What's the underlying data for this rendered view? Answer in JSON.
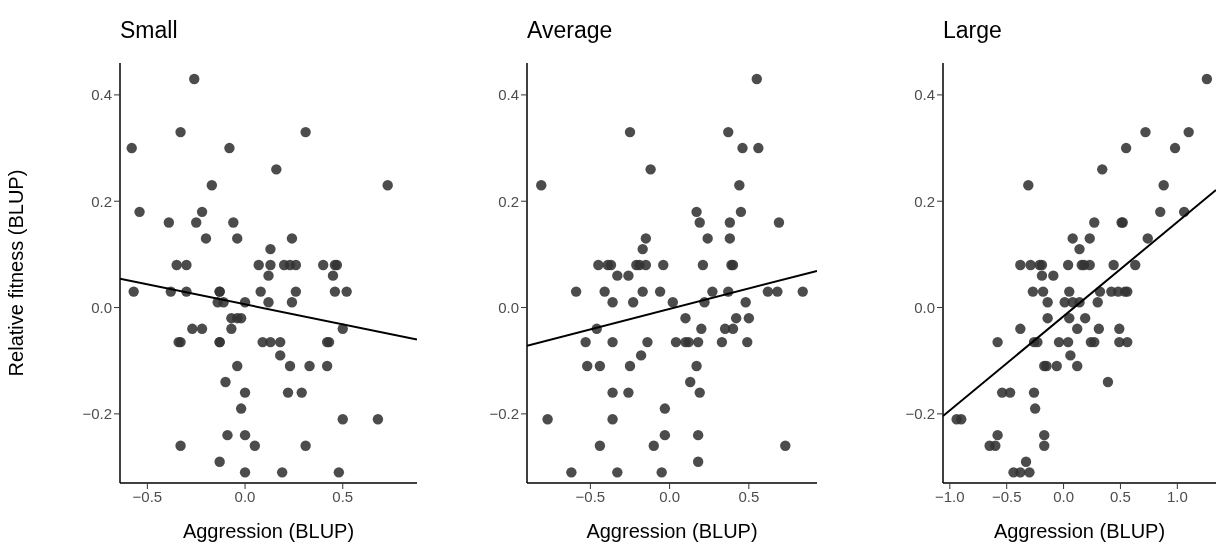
{
  "chart_data": [
    {
      "type": "scatter",
      "title": "Small",
      "xlabel": "Aggression (BLUP)",
      "ylabel": "Relative fitness (BLUP)",
      "xlim": [
        -0.64,
        0.88
      ],
      "xticks": [
        {
          "value": -0.5,
          "label": "−0.5"
        },
        {
          "value": 0,
          "label": "0.0"
        },
        {
          "value": 0.5,
          "label": "0.5"
        }
      ],
      "ylim": [
        -0.33,
        0.46
      ],
      "yticks": [
        {
          "value": -0.2,
          "label": "−0.2"
        },
        {
          "value": 0,
          "label": "0.0"
        },
        {
          "value": 0.2,
          "label": "0.2"
        },
        {
          "value": 0.4,
          "label": "0.4"
        }
      ],
      "series": [
        {
          "type": "scatter",
          "marker": "circle",
          "color": "#333333",
          "x": [
            -0.26,
            -0.33,
            0.31,
            -0.58,
            -0.08,
            0.16,
            -0.17,
            0.73,
            -0.54,
            -0.22,
            -0.39,
            -0.25,
            -0.06,
            -0.2,
            -0.04,
            0.24,
            0.13,
            -0.35,
            -0.3,
            0.07,
            0.13,
            0.2,
            0.23,
            0.26,
            0.4,
            0.46,
            0.47,
            0.12,
            0.45,
            -0.57,
            -0.38,
            -0.3,
            -0.13,
            -0.13,
            0.08,
            0.26,
            0.46,
            0.52,
            -0.14,
            -0.11,
            0,
            0.12,
            0.24,
            -0.07,
            -0.04,
            -0.02,
            -0.27,
            -0.22,
            -0.07,
            0.5,
            -0.34,
            -0.33,
            -0.13,
            -0.13,
            0.09,
            0.13,
            0.18,
            0.42,
            0.43,
            0.18,
            -0.04,
            0.23,
            0.33,
            0.42,
            -0.1,
            0,
            0.22,
            0.29,
            -0.02,
            0.5,
            0.68,
            -0.09,
            0,
            -0.33,
            0.05,
            0.31,
            -0.13,
            0,
            0.19,
            0.48
          ],
          "values": [
            0.43,
            0.33,
            0.33,
            0.3,
            0.3,
            0.26,
            0.23,
            0.23,
            0.18,
            0.18,
            0.16,
            0.16,
            0.16,
            0.13,
            0.13,
            0.13,
            0.11,
            0.08,
            0.08,
            0.08,
            0.08,
            0.08,
            0.08,
            0.08,
            0.08,
            0.08,
            0.08,
            0.06,
            0.06,
            0.03,
            0.03,
            0.03,
            0.03,
            0.03,
            0.03,
            0.03,
            0.03,
            0.03,
            0.01,
            0.01,
            0.01,
            0.01,
            0.01,
            -0.02,
            -0.02,
            -0.02,
            -0.04,
            -0.04,
            -0.04,
            -0.04,
            -0.065,
            -0.065,
            -0.065,
            -0.065,
            -0.065,
            -0.065,
            -0.065,
            -0.065,
            -0.065,
            -0.09,
            -0.11,
            -0.11,
            -0.11,
            -0.11,
            -0.14,
            -0.16,
            -0.16,
            -0.16,
            -0.19,
            -0.21,
            -0.21,
            -0.24,
            -0.24,
            -0.26,
            -0.26,
            -0.26,
            -0.29,
            -0.31,
            -0.31,
            -0.31
          ]
        },
        {
          "type": "line",
          "marker": "none",
          "color": "#000000",
          "x": [
            -0.64,
            0.88
          ],
          "values": [
            0.054,
            -0.06
          ]
        }
      ]
    },
    {
      "type": "scatter",
      "title": "Average",
      "xlabel": "Aggression (BLUP)",
      "xlim": [
        -0.9,
        0.93
      ],
      "xticks": [
        {
          "value": -0.5,
          "label": "−0.5"
        },
        {
          "value": 0,
          "label": "0.0"
        },
        {
          "value": 0.5,
          "label": "0.5"
        }
      ],
      "ylim": [
        -0.33,
        0.46
      ],
      "yticks": [
        {
          "value": -0.2,
          "label": "−0.2"
        },
        {
          "value": 0,
          "label": "0.0"
        },
        {
          "value": 0.2,
          "label": "0.2"
        },
        {
          "value": 0.4,
          "label": "0.4"
        }
      ],
      "series": [
        {
          "type": "scatter",
          "marker": "circle",
          "color": "#333333",
          "x": [
            0.55,
            -0.25,
            0.37,
            0.46,
            0.56,
            -0.12,
            -0.81,
            0.44,
            0.17,
            0.45,
            0.19,
            0.38,
            0.69,
            -0.15,
            0.24,
            0.38,
            -0.17,
            -0.45,
            -0.39,
            -0.37,
            -0.21,
            -0.19,
            -0.15,
            -0.04,
            0.21,
            0.39,
            0.4,
            -0.33,
            -0.26,
            -0.59,
            -0.41,
            -0.17,
            -0.06,
            0.27,
            0.37,
            0.62,
            0.68,
            0.84,
            -0.36,
            -0.23,
            0.02,
            0.22,
            0.48,
            0.1,
            0.42,
            0.5,
            -0.46,
            0.2,
            0.35,
            0.4,
            -0.53,
            -0.36,
            -0.14,
            0.04,
            0.1,
            0.12,
            0.18,
            0.33,
            0.49,
            -0.18,
            -0.52,
            -0.44,
            -0.25,
            0.17,
            0.13,
            -0.36,
            -0.26,
            0.19,
            -0.03,
            -0.77,
            -0.36,
            -0.03,
            0.18,
            -0.44,
            -0.1,
            0.73,
            0.18,
            -0.62,
            -0.33,
            -0.05
          ],
          "values": [
            0.43,
            0.33,
            0.33,
            0.3,
            0.3,
            0.26,
            0.23,
            0.23,
            0.18,
            0.18,
            0.16,
            0.16,
            0.16,
            0.13,
            0.13,
            0.13,
            0.11,
            0.08,
            0.08,
            0.08,
            0.08,
            0.08,
            0.08,
            0.08,
            0.08,
            0.08,
            0.08,
            0.06,
            0.06,
            0.03,
            0.03,
            0.03,
            0.03,
            0.03,
            0.03,
            0.03,
            0.03,
            0.03,
            0.01,
            0.01,
            0.01,
            0.01,
            0.01,
            -0.02,
            -0.02,
            -0.02,
            -0.04,
            -0.04,
            -0.04,
            -0.04,
            -0.065,
            -0.065,
            -0.065,
            -0.065,
            -0.065,
            -0.065,
            -0.065,
            -0.065,
            -0.065,
            -0.09,
            -0.11,
            -0.11,
            -0.11,
            -0.11,
            -0.14,
            -0.16,
            -0.16,
            -0.16,
            -0.19,
            -0.21,
            -0.21,
            -0.24,
            -0.24,
            -0.26,
            -0.26,
            -0.26,
            -0.29,
            -0.31,
            -0.31,
            -0.31
          ]
        },
        {
          "type": "line",
          "marker": "none",
          "color": "#000000",
          "x": [
            -0.9,
            0.93
          ],
          "values": [
            -0.072,
            0.069
          ]
        }
      ]
    },
    {
      "type": "scatter",
      "title": "Large",
      "xlabel": "Aggression (BLUP)",
      "xlim": [
        -1.06,
        1.34
      ],
      "xticks": [
        {
          "value": -1,
          "label": "−1.0"
        },
        {
          "value": -0.5,
          "label": "−0.5"
        },
        {
          "value": 0,
          "label": "0.0"
        },
        {
          "value": 0.5,
          "label": "0.5"
        },
        {
          "value": 1,
          "label": "1.0"
        }
      ],
      "ylim": [
        -0.33,
        0.46
      ],
      "yticks": [
        {
          "value": -0.2,
          "label": "−0.2"
        },
        {
          "value": 0,
          "label": "0.0"
        },
        {
          "value": 0.2,
          "label": "0.2"
        },
        {
          "value": 0.4,
          "label": "0.4"
        }
      ],
      "series": [
        {
          "type": "scatter",
          "marker": "circle",
          "color": "#333333",
          "x": [
            1.26,
            0.72,
            1.1,
            0.55,
            0.98,
            0.34,
            -0.31,
            0.88,
            0.85,
            1.06,
            0.27,
            0.51,
            0.52,
            0.08,
            0.23,
            0.74,
            0.14,
            -0.38,
            -0.29,
            -0.21,
            -0.19,
            0.04,
            0.16,
            0.18,
            0.23,
            0.44,
            0.63,
            -0.19,
            -0.09,
            -0.27,
            -0.18,
            0.05,
            0.32,
            0.42,
            0.48,
            0.54,
            0.56,
            -0.14,
            0.01,
            0.08,
            0.14,
            0.3,
            -0.14,
            0.05,
            0.19,
            -0.38,
            0.12,
            0.31,
            0.49,
            -0.58,
            -0.26,
            -0.23,
            -0.04,
            0.04,
            0.24,
            0.27,
            0.49,
            0.56,
            0.06,
            -0.17,
            -0.15,
            -0.06,
            0.12,
            0.39,
            -0.54,
            -0.47,
            -0.26,
            -0.25,
            -0.94,
            -0.9,
            -0.58,
            -0.17,
            -0.65,
            -0.6,
            -0.17,
            -0.33,
            -0.44,
            -0.38,
            -0.3
          ],
          "values": [
            0.43,
            0.33,
            0.33,
            0.3,
            0.3,
            0.26,
            0.23,
            0.23,
            0.18,
            0.18,
            0.16,
            0.16,
            0.16,
            0.13,
            0.13,
            0.13,
            0.11,
            0.08,
            0.08,
            0.08,
            0.08,
            0.08,
            0.08,
            0.08,
            0.08,
            0.08,
            0.08,
            0.06,
            0.06,
            0.03,
            0.03,
            0.03,
            0.03,
            0.03,
            0.03,
            0.03,
            0.03,
            0.01,
            0.01,
            0.01,
            0.01,
            0.01,
            -0.02,
            -0.02,
            -0.02,
            -0.04,
            -0.04,
            -0.04,
            -0.04,
            -0.065,
            -0.065,
            -0.065,
            -0.065,
            -0.065,
            -0.065,
            -0.065,
            -0.065,
            -0.065,
            -0.09,
            -0.11,
            -0.11,
            -0.11,
            -0.11,
            -0.14,
            -0.16,
            -0.16,
            -0.16,
            -0.19,
            -0.21,
            -0.21,
            -0.24,
            -0.24,
            -0.26,
            -0.26,
            -0.26,
            -0.29,
            -0.31,
            -0.31,
            -0.31
          ]
        },
        {
          "type": "line",
          "marker": "none",
          "color": "#000000",
          "x": [
            -1.06,
            1.34
          ],
          "values": [
            -0.204,
            0.221
          ]
        }
      ]
    }
  ]
}
